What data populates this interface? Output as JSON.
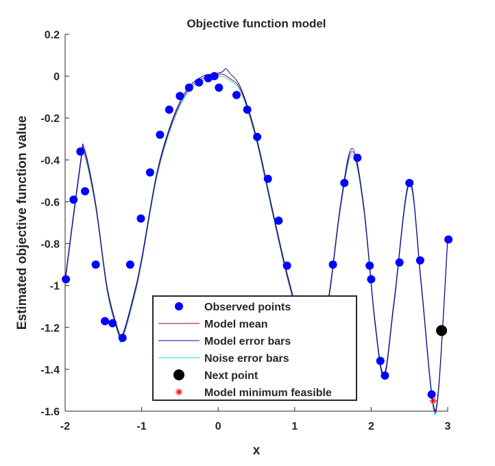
{
  "chart_data": {
    "type": "scatter",
    "title": "Objective function model",
    "xlabel": "x",
    "ylabel": "Estimated objective function value",
    "xlim": [
      -2,
      3
    ],
    "ylim": [
      -1.6,
      0.2
    ],
    "xticks": [
      -2,
      -1,
      0,
      1,
      2,
      3
    ],
    "yticks": [
      -1.6,
      -1.4,
      -1.2,
      -1,
      -0.8,
      -0.6,
      -0.4,
      -0.2,
      0,
      0.2
    ],
    "xtick_labels": [
      "-2",
      "-1",
      "0",
      "1",
      "2",
      "3"
    ],
    "ytick_labels": [
      "-1.6",
      "-1.4",
      "-1.2",
      "-1",
      "-0.8",
      "-0.6",
      "-0.4",
      "-0.2",
      "0",
      "0.2"
    ],
    "grid": false,
    "legend_position": "bottom-center",
    "series": [
      {
        "name": "Observed points",
        "kind": "markers",
        "color": "#0000ff",
        "x": [
          -1.99,
          -1.89,
          -1.8,
          -1.74,
          -1.6,
          -1.48,
          -1.38,
          -1.25,
          -1.15,
          -1.01,
          -0.89,
          -0.76,
          -0.64,
          -0.5,
          -0.38,
          -0.25,
          -0.13,
          -0.05,
          0.01,
          0.24,
          0.38,
          0.51,
          0.65,
          0.79,
          0.9,
          1.02,
          1.12,
          1.24,
          1.35,
          1.5,
          1.65,
          1.82,
          1.98,
          2.0,
          2.12,
          2.18,
          2.37,
          2.5,
          2.64,
          2.79,
          3.01
        ],
        "y": [
          -0.97,
          -0.59,
          -0.36,
          -0.55,
          -0.9,
          -1.17,
          -1.18,
          -1.25,
          -0.9,
          -0.68,
          -0.46,
          -0.28,
          -0.16,
          -0.095,
          -0.055,
          -0.03,
          -0.01,
          0.0,
          -0.055,
          -0.09,
          -0.16,
          -0.29,
          -0.49,
          -0.69,
          -0.905,
          -1.1,
          -1.25,
          -1.35,
          -1.2,
          -0.9,
          -0.51,
          -0.39,
          -0.905,
          -0.97,
          -1.36,
          -1.43,
          -0.89,
          -0.51,
          -0.88,
          -1.52,
          -0.78
        ]
      },
      {
        "name": "Model mean",
        "kind": "line",
        "color": "#a00000",
        "x": [
          -2,
          -1.8,
          -1.75,
          -1.6,
          -1.45,
          -1.3,
          -1.25,
          -1.1,
          -1.0,
          -0.8,
          -0.6,
          -0.4,
          -0.2,
          -0.05,
          0.05,
          0.15,
          0.3,
          0.5,
          0.7,
          0.9,
          1.1,
          1.3,
          1.45,
          1.6,
          1.75,
          1.9,
          2.05,
          2.17,
          2.3,
          2.5,
          2.65,
          2.8,
          2.88,
          3.0
        ],
        "y": [
          -0.98,
          -0.42,
          -0.36,
          -0.62,
          -1.02,
          -1.23,
          -1.245,
          -1.05,
          -0.88,
          -0.47,
          -0.22,
          -0.07,
          -0.01,
          0.0,
          0.01,
          -0.01,
          -0.07,
          -0.3,
          -0.63,
          -0.95,
          -1.2,
          -1.3,
          -1.05,
          -0.62,
          -0.36,
          -0.62,
          -1.18,
          -1.43,
          -1.08,
          -0.51,
          -0.98,
          -1.55,
          -1.5,
          -0.78
        ]
      },
      {
        "name": "Model error bars",
        "kind": "line",
        "color": "#0000b0",
        "x": [
          -2,
          -1.8,
          -1.75,
          -1.6,
          -1.45,
          -1.3,
          -1.25,
          -1.1,
          -1.0,
          -0.8,
          -0.6,
          -0.4,
          -0.2,
          -0.05,
          0.05,
          0.1,
          0.15,
          0.3,
          0.5,
          0.7,
          0.9,
          1.1,
          1.3,
          1.45,
          1.6,
          1.75,
          1.9,
          2.05,
          2.17,
          2.3,
          2.5,
          2.65,
          2.8,
          2.88,
          3.0
        ],
        "y": [
          -0.97,
          -0.41,
          -0.345,
          -0.61,
          -1.01,
          -1.22,
          -1.235,
          -1.04,
          -0.87,
          -0.46,
          -0.21,
          -0.06,
          0.0,
          0.01,
          0.02,
          0.035,
          0.015,
          -0.06,
          -0.29,
          -0.62,
          -0.94,
          -1.19,
          -1.29,
          -1.04,
          -0.61,
          -0.345,
          -0.61,
          -1.17,
          -1.42,
          -1.07,
          -0.5,
          -0.97,
          -1.54,
          -1.49,
          -0.77
        ]
      },
      {
        "name": "Noise error bars",
        "kind": "line",
        "color": "#00e0e0",
        "x": [
          -2,
          -1.8,
          -1.75,
          -1.6,
          -1.45,
          -1.3,
          -1.25,
          -1.1,
          -1.0,
          -0.8,
          -0.6,
          -0.4,
          -0.2,
          -0.05,
          0.05,
          0.15,
          0.3,
          0.5,
          0.7,
          0.9,
          1.1,
          1.3,
          1.45,
          1.6,
          1.75,
          1.9,
          2.05,
          2.17,
          2.3,
          2.5,
          2.65,
          2.8,
          2.88,
          3.0
        ],
        "y": [
          -0.99,
          -0.43,
          -0.375,
          -0.63,
          -1.03,
          -1.24,
          -1.255,
          -1.06,
          -0.89,
          -0.48,
          -0.23,
          -0.08,
          -0.02,
          -0.01,
          0.0,
          -0.02,
          -0.08,
          -0.31,
          -0.64,
          -0.96,
          -1.21,
          -1.31,
          -1.06,
          -0.63,
          -0.375,
          -0.63,
          -1.19,
          -1.44,
          -1.09,
          -0.52,
          -0.99,
          -1.56,
          -1.51,
          -0.79
        ]
      },
      {
        "name": "Next point",
        "kind": "marker",
        "color": "#000000",
        "x": [
          2.92
        ],
        "y": [
          -1.215
        ]
      },
      {
        "name": "Model minimum feasible",
        "kind": "star",
        "color": "#ff0000",
        "x": [
          2.81
        ],
        "y": [
          -1.55
        ]
      }
    ]
  }
}
